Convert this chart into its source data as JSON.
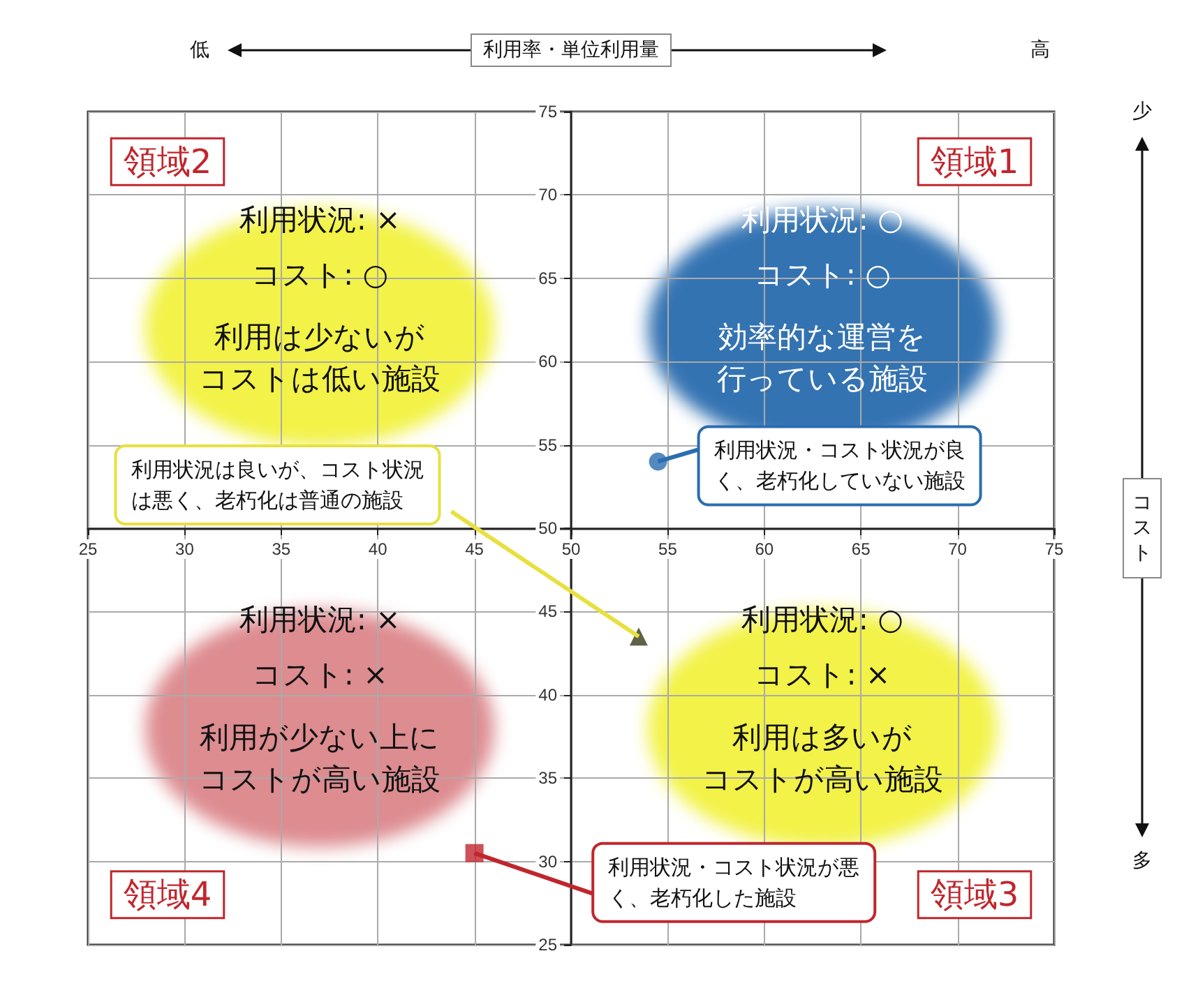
{
  "chart_data": {
    "type": "scatter",
    "xlabel": "利用率・単位利用量",
    "ylabel": "コスト",
    "xlim": [
      25,
      75
    ],
    "xticks": [
      25,
      30,
      35,
      40,
      45,
      50,
      55,
      60,
      65,
      70,
      75
    ],
    "ylim": [
      25,
      75
    ],
    "yticks": [
      25,
      30,
      35,
      40,
      45,
      50,
      55,
      60,
      65,
      70,
      75
    ],
    "grid": true,
    "series": [
      {
        "marker": "circle",
        "color": "#2a6db0",
        "x": [
          54.5
        ],
        "values": [
          54
        ]
      },
      {
        "marker": "triangle",
        "color": "#3a3a1a",
        "x": [
          53.5
        ],
        "values": [
          43.5
        ]
      },
      {
        "marker": "square",
        "color": "#c0262d",
        "x": [
          45
        ],
        "values": [
          30.5
        ]
      }
    ],
    "annotations": [
      "領域2",
      "領域1",
      "領域4",
      "領域3",
      "利用状況: ×",
      "コスト: ○",
      "利用は少ないがコストは低い施設",
      "利用状況: ○",
      "コスト: ○",
      "効率的な運営を行っている施設",
      "利用状況: ×",
      "コスト: ×",
      "利用が少ない上にコストが高い施設",
      "利用状況: ○",
      "コスト: ×",
      "利用は多いがコストが高い施設",
      {
        "text": "利用状況・コスト状況が良く、老朽化していない施設",
        "x": 54.5,
        "y": 54
      },
      {
        "text": "利用状況は良いが、コスト状況は悪く、老朽化は普通の施設",
        "x": 53.5,
        "y": 43.5
      },
      {
        "text": "利用状況・コスト状況が悪く、老朽化した施設",
        "x": 45,
        "y": 30.5
      },
      "低",
      "高",
      "少",
      "多"
    ]
  }
}
